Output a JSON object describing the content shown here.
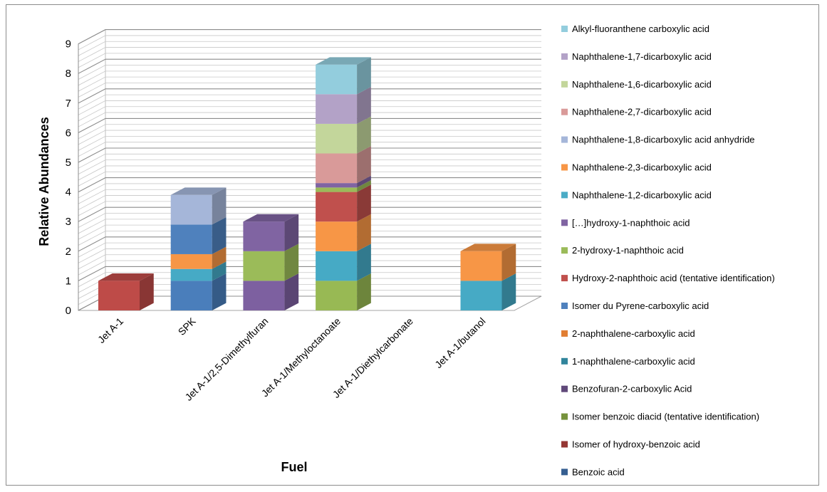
{
  "chart_data": {
    "type": "bar",
    "subtype": "stacked-3d-column",
    "xlabel": "Fuel",
    "ylabel": "Relative Abundances",
    "ylim": [
      0,
      9
    ],
    "yticks": [
      "0",
      "1",
      "2",
      "3",
      "4",
      "5",
      "6",
      "7",
      "8",
      "9"
    ],
    "grid": true,
    "legend_position": "right",
    "categories": [
      "Jet A-1",
      "SPK",
      "Jet A-1/2,5-Dimethylfuran",
      "Jet A-1/Methyloctanoate",
      "Jet A-1/Diethylcarbonate",
      "Jet A-1/butanol"
    ],
    "series": [
      {
        "name": "Benzoic acid",
        "color": "#4a7ebb",
        "values": [
          0,
          1,
          0,
          0,
          0,
          0
        ]
      },
      {
        "name": "Isomer of hydroxy-benzoic acid",
        "color": "#be4b48",
        "values": [
          1,
          0,
          0,
          0,
          0,
          0
        ]
      },
      {
        "name": "Isomer benzoic diacid (tentative identification)",
        "color": "#98b954",
        "values": [
          0,
          0,
          0,
          1,
          0,
          0
        ]
      },
      {
        "name": "Benzofuran-2-carboxylic Acid",
        "color": "#7d60a0",
        "values": [
          0,
          0,
          1,
          0,
          0,
          0
        ]
      },
      {
        "name": "1-naphthalene-carboxylic acid",
        "color": "#46aac5",
        "values": [
          0,
          0.4,
          0,
          1,
          0,
          1
        ]
      },
      {
        "name": "2-naphthalene-carboxylic acid",
        "color": "#f79646",
        "values": [
          0,
          0.5,
          0,
          1,
          0,
          1
        ]
      },
      {
        "name": "Isomer du Pyrene-carboxylic acid",
        "color": "#4f81bd",
        "values": [
          0,
          1,
          0,
          0,
          0,
          0
        ]
      },
      {
        "name": "Hydroxy-2-naphthoic acid (tentative identification)",
        "color": "#c0504d",
        "values": [
          0,
          0,
          0,
          1,
          0,
          0
        ]
      },
      {
        "name": "2-hydroxy-1-naphthoic acid",
        "color": "#9bbb59",
        "values": [
          0,
          0,
          1,
          0.15,
          0,
          0
        ]
      },
      {
        "name": "[…]hydroxy-1-naphthoic acid",
        "color": "#8064a2",
        "values": [
          0,
          0,
          1,
          0.15,
          0,
          0
        ]
      },
      {
        "name": "Naphthalene-1,2-dicarboxylic acid",
        "color": "#4bacc6",
        "values": [
          0,
          0,
          0,
          0,
          0,
          0
        ]
      },
      {
        "name": "Naphthalene-2,3-dicarboxylic acid",
        "color": "#f79646",
        "values": [
          0,
          0,
          0,
          0,
          0,
          0
        ]
      },
      {
        "name": "Naphthalene-1,8-dicarboxylic acid anhydride",
        "color": "#a5b6d9",
        "values": [
          0,
          1,
          0,
          0,
          0,
          0
        ]
      },
      {
        "name": "Naphthalene-2,7-dicarboxylic acid",
        "color": "#d99a99",
        "values": [
          0,
          0,
          0,
          1,
          0,
          0
        ]
      },
      {
        "name": "Naphthalene-1,6-dicarboxylic acid",
        "color": "#c3d69b",
        "values": [
          0,
          0,
          0,
          1,
          0,
          0
        ]
      },
      {
        "name": "Naphthalene-1,7-dicarboxylic acid",
        "color": "#b3a2c7",
        "values": [
          0,
          0,
          0,
          1,
          0,
          0
        ]
      },
      {
        "name": "Alkyl-fluoranthene carboxylic acid",
        "color": "#93cddd",
        "values": [
          0,
          0,
          0,
          1,
          0,
          0
        ]
      }
    ],
    "legend": [
      {
        "label": "Alkyl-fluoranthene carboxylic acid",
        "color": "#93cddd"
      },
      {
        "label": "Naphthalene-1,7-dicarboxylic acid",
        "color": "#b3a2c7"
      },
      {
        "label": "Naphthalene-1,6-dicarboxylic acid",
        "color": "#c3d69b"
      },
      {
        "label": "Naphthalene-2,7-dicarboxylic acid",
        "color": "#d99a99"
      },
      {
        "label": "Naphthalene-1,8-dicarboxylic acid anhydride",
        "color": "#a5b6d9"
      },
      {
        "label": "Naphthalene-2,3-dicarboxylic acid",
        "color": "#f79646"
      },
      {
        "label": "Naphthalene-1,2-dicarboxylic acid",
        "color": "#4bacc6"
      },
      {
        "label": "[…]hydroxy-1-naphthoic acid",
        "color": "#8064a2"
      },
      {
        "label": "2-hydroxy-1-naphthoic acid",
        "color": "#9bbb59"
      },
      {
        "label": "Hydroxy-2-naphthoic acid (tentative identification)",
        "color": "#c0504d"
      },
      {
        "label": "Isomer du Pyrene-carboxylic acid",
        "color": "#4f81bd"
      },
      {
        "label": "2-naphthalene-carboxylic acid",
        "color": "#e17e33"
      },
      {
        "label": "1-naphthalene-carboxylic acid",
        "color": "#31859c"
      },
      {
        "label": "Benzofuran-2-carboxylic Acid",
        "color": "#60497a"
      },
      {
        "label": "Isomer benzoic diacid (tentative identification)",
        "color": "#76923c"
      },
      {
        "label": "Isomer of hydroxy-benzoic acid",
        "color": "#953734"
      },
      {
        "label": "Benzoic acid",
        "color": "#365f91"
      }
    ]
  }
}
